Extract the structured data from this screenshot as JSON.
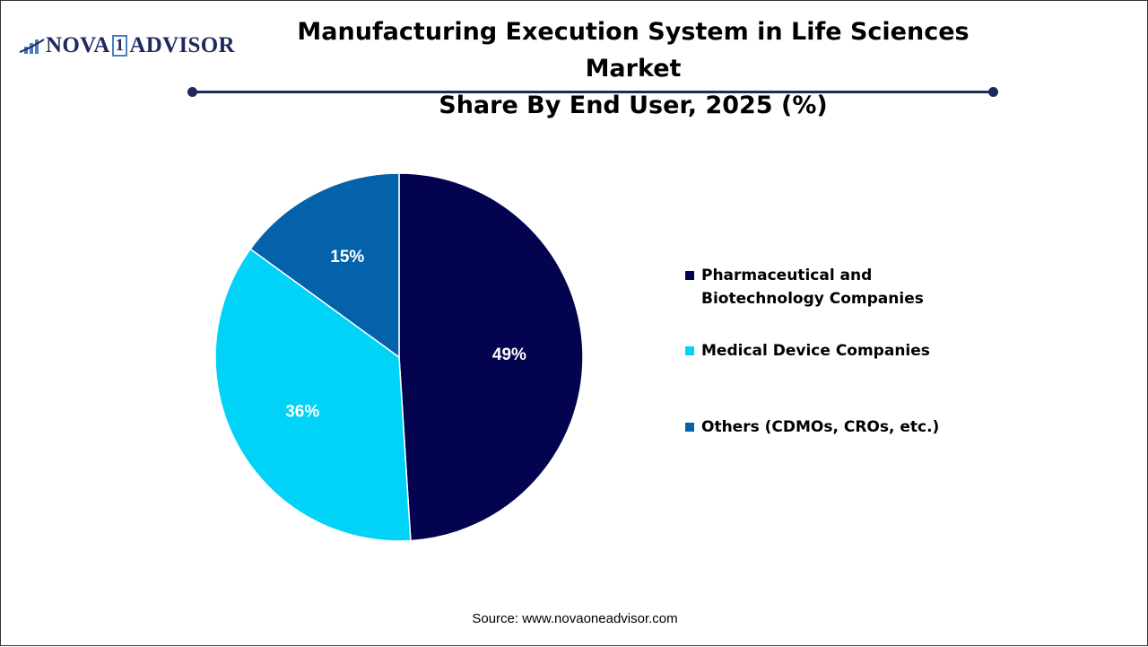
{
  "logo": {
    "text_left": "NOVA",
    "text_one": "1",
    "text_right": "ADVISOR"
  },
  "title_line1": "Manufacturing Execution System in Life Sciences Market",
  "title_line2": "Share By End User, 2025 (%)",
  "source": "Source: www.novaoneadvisor.com",
  "chart_data": {
    "type": "pie",
    "title": "Manufacturing Execution System in Life Sciences Market Share By End User, 2025 (%)",
    "categories": [
      "Pharmaceutical and Biotechnology Companies",
      "Medical Device Companies",
      "Others (CDMOs, CROs, etc.)"
    ],
    "values": [
      49,
      36,
      15
    ],
    "data_labels": [
      "49%",
      "36%",
      "15%"
    ],
    "colors": [
      "#03034f",
      "#00d3f7",
      "#0462ab"
    ],
    "start_angle": "12 o'clock",
    "direction": "clockwise",
    "legend_position": "right"
  },
  "legend": [
    {
      "line1": "Pharmaceutical and",
      "line2": "Biotechnology Companies"
    },
    {
      "line1": "Medical Device Companies"
    },
    {
      "line1": "Others (CDMOs, CROs, etc.)"
    }
  ]
}
